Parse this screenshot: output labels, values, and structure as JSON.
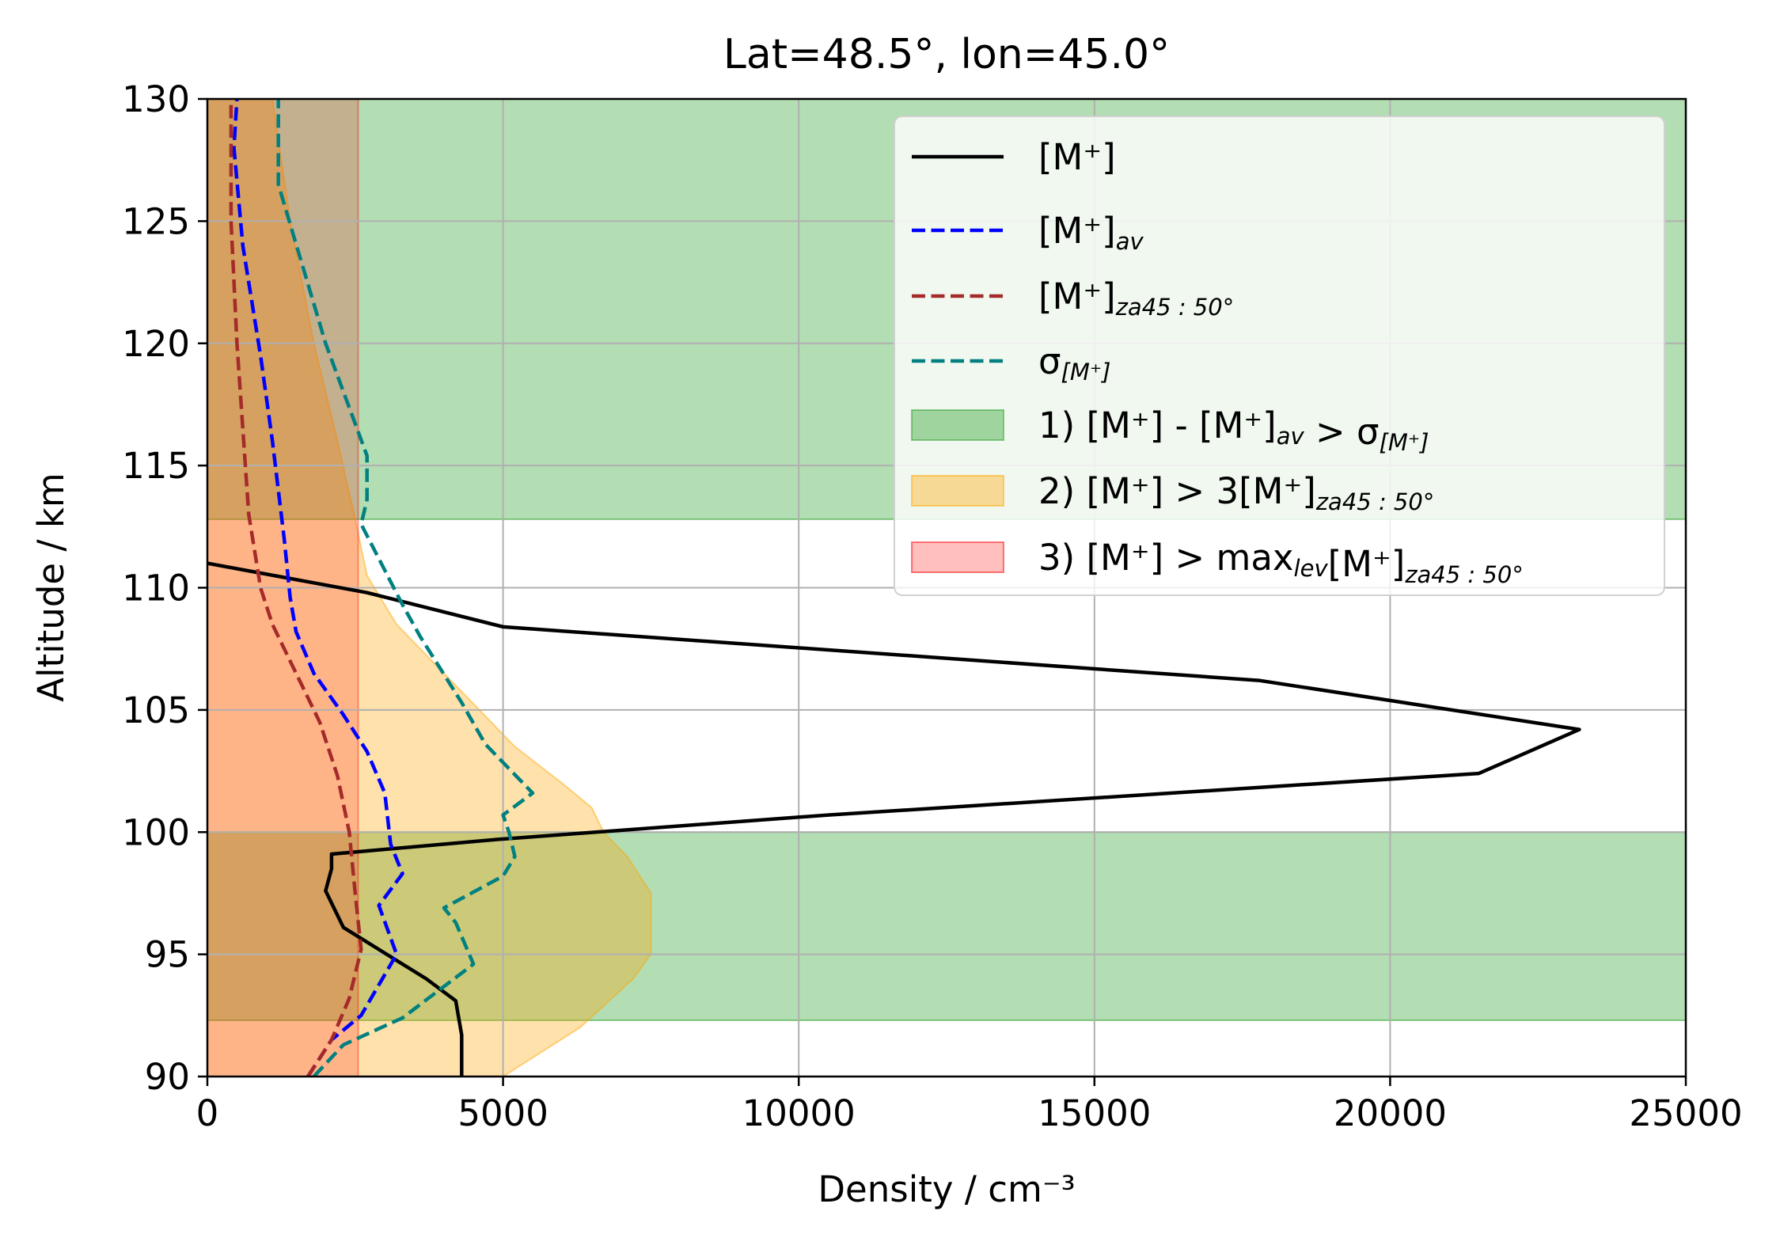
{
  "chart_data": {
    "type": "line",
    "title": "Lat=48.5°, lon=45.0°",
    "xlabel": "Density / cm⁻³",
    "ylabel": "Altitude / km",
    "xlim": [
      0,
      25000
    ],
    "ylim": [
      90,
      130
    ],
    "x_ticks": [
      0,
      5000,
      10000,
      15000,
      20000,
      25000
    ],
    "y_ticks": [
      90,
      95,
      100,
      105,
      110,
      115,
      120,
      125,
      130
    ],
    "grid": true,
    "legend_location": "upper right",
    "series": [
      {
        "name": "[M⁺]",
        "style": "solid",
        "color": "#000000",
        "points": [
          [
            4300,
            90.0
          ],
          [
            4300,
            91.7
          ],
          [
            4200,
            93.1
          ],
          [
            3700,
            94.0
          ],
          [
            2300,
            96.1
          ],
          [
            2000,
            97.6
          ],
          [
            2100,
            98.5
          ],
          [
            2100,
            99.1
          ],
          [
            4900,
            99.7
          ],
          [
            10500,
            100.7
          ],
          [
            21500,
            102.4
          ],
          [
            23200,
            104.2
          ],
          [
            17800,
            106.2
          ],
          [
            5000,
            108.4
          ],
          [
            2700,
            109.8
          ],
          [
            0,
            111.0
          ]
        ]
      },
      {
        "name": "[M⁺]av",
        "name_sub": "av",
        "style": "dashed",
        "color": "#0000ff",
        "points": [
          [
            1700,
            90.0
          ],
          [
            2100,
            91.5
          ],
          [
            2600,
            92.5
          ],
          [
            3200,
            95.0
          ],
          [
            2900,
            97.0
          ],
          [
            3300,
            98.3
          ],
          [
            3100,
            99.5
          ],
          [
            3000,
            101.6
          ],
          [
            2700,
            103.3
          ],
          [
            2300,
            104.8
          ],
          [
            1800,
            106.5
          ],
          [
            1500,
            108.2
          ],
          [
            1400,
            109.6
          ],
          [
            1300,
            112.0
          ],
          [
            1100,
            116.0
          ],
          [
            900,
            119.5
          ],
          [
            600,
            124.0
          ],
          [
            450,
            128.0
          ],
          [
            500,
            130.0
          ]
        ]
      },
      {
        "name": "[M⁺]za45:50°",
        "name_sub": "za45:50°",
        "style": "dashed",
        "color": "#a52a2a",
        "points": [
          [
            1700,
            90.0
          ],
          [
            2100,
            91.5
          ],
          [
            2400,
            93.2
          ],
          [
            2600,
            95.2
          ],
          [
            2500,
            97.5
          ],
          [
            2400,
            100.0
          ],
          [
            2200,
            102.3
          ],
          [
            1900,
            104.5
          ],
          [
            1500,
            106.5
          ],
          [
            1100,
            108.5
          ],
          [
            900,
            110.0
          ],
          [
            700,
            113.0
          ],
          [
            600,
            116.5
          ],
          [
            500,
            120.0
          ],
          [
            400,
            125.0
          ],
          [
            400,
            130.0
          ]
        ]
      },
      {
        "name": "σ[M⁺]",
        "name_sub": "[M⁺]",
        "style": "dashed",
        "color": "#008080",
        "points": [
          [
            1800,
            90.0
          ],
          [
            2300,
            91.3
          ],
          [
            3300,
            92.4
          ],
          [
            4500,
            94.6
          ],
          [
            4200,
            96.3
          ],
          [
            4000,
            96.9
          ],
          [
            5000,
            98.2
          ],
          [
            5200,
            99.0
          ],
          [
            5100,
            100.0
          ],
          [
            5000,
            100.7
          ],
          [
            5500,
            101.6
          ],
          [
            4700,
            103.6
          ],
          [
            4300,
            105.3
          ],
          [
            3600,
            108.0
          ],
          [
            3300,
            109.3
          ],
          [
            2600,
            112.6
          ],
          [
            2700,
            113.6
          ],
          [
            2700,
            115.4
          ],
          [
            2000,
            120.0
          ],
          [
            1200,
            126.5
          ],
          [
            1200,
            130.0
          ]
        ]
      }
    ],
    "bands": [
      {
        "name": "1) [M⁺] - [M⁺]av > σ[M⁺]",
        "color": "#2ca02c",
        "opacity": 0.36,
        "regions": [
          [
            0,
            25000,
            112.8,
            130
          ],
          [
            0,
            25000,
            92.3,
            100
          ]
        ]
      },
      {
        "name": "2) [M⁺] > 3[M⁺]za45:50°",
        "color": "#ffa500",
        "opacity": 0.33,
        "profile_points": [
          [
            5000,
            90.0
          ],
          [
            6300,
            92.0
          ],
          [
            7200,
            94.0
          ],
          [
            7500,
            95.0
          ],
          [
            7500,
            97.5
          ],
          [
            7100,
            99.0
          ],
          [
            6700,
            100.0
          ],
          [
            6500,
            101.0
          ],
          [
            6000,
            102.0
          ],
          [
            5200,
            103.5
          ],
          [
            4200,
            106.0
          ],
          [
            3200,
            108.5
          ],
          [
            2700,
            110.5
          ],
          [
            2500,
            112.8
          ],
          [
            2200,
            116.0
          ],
          [
            1800,
            120.0
          ],
          [
            1400,
            125.0
          ],
          [
            1100,
            130.0
          ]
        ]
      },
      {
        "name": "3) [M⁺] > maxlev[M⁺]za45:50°",
        "color": "#ff0000",
        "opacity": 0.2,
        "regions": [
          [
            0,
            2550,
            90,
            130
          ]
        ]
      }
    ],
    "legend": [
      {
        "label": "[M⁺]",
        "sub": "",
        "post": "",
        "post_sub": "",
        "tail": ""
      },
      {
        "label": "[M⁺]",
        "sub": "av",
        "post": "",
        "post_sub": "",
        "tail": ""
      },
      {
        "label": "[M⁺]",
        "sub": "za45 : 50°",
        "post": "",
        "post_sub": "",
        "tail": ""
      },
      {
        "label": "σ",
        "sub": "[M⁺]",
        "post": "",
        "post_sub": "",
        "tail": ""
      },
      {
        "label": "1) [M⁺] - [M⁺]",
        "sub": "av",
        "post": " > σ",
        "post_sub": "[M⁺]",
        "tail": ""
      },
      {
        "label": "2) [M⁺] > 3[M⁺]",
        "sub": "za45 : 50°",
        "post": "",
        "post_sub": "",
        "tail": ""
      },
      {
        "label": "3) [M⁺] > max",
        "sub": "lev",
        "post": "[M⁺]",
        "post_sub": "za45 : 50°",
        "tail": ""
      }
    ]
  },
  "colors": {
    "green_band": "#2ca02c",
    "orange_band": "#ffa500",
    "red_band": "#ff0000",
    "black_line": "#000000",
    "blue_line": "#0000ff",
    "brown_line": "#a52a2a",
    "teal_line": "#008080"
  }
}
